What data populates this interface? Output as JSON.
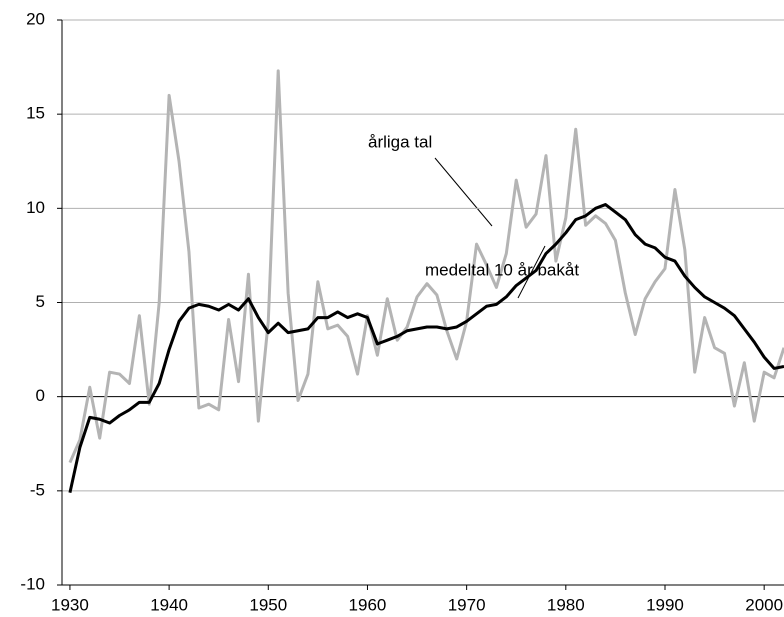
{
  "chart_data": {
    "type": "line",
    "x": [
      1930,
      1931,
      1932,
      1933,
      1934,
      1935,
      1936,
      1937,
      1938,
      1939,
      1940,
      1941,
      1942,
      1943,
      1944,
      1945,
      1946,
      1947,
      1948,
      1949,
      1950,
      1951,
      1952,
      1953,
      1954,
      1955,
      1956,
      1957,
      1958,
      1959,
      1960,
      1961,
      1962,
      1963,
      1964,
      1965,
      1966,
      1967,
      1968,
      1969,
      1970,
      1971,
      1972,
      1973,
      1974,
      1975,
      1976,
      1977,
      1978,
      1979,
      1980,
      1981,
      1982,
      1983,
      1984,
      1985,
      1986,
      1987,
      1988,
      1989,
      1990,
      1991,
      1992,
      1993,
      1994,
      1995,
      1996,
      1997,
      1998,
      1999,
      2000,
      2001,
      2002
    ],
    "series": [
      {
        "name": "årliga tal",
        "color": "#b4b4b4",
        "values": [
          -3.5,
          -2.3,
          0.5,
          -2.2,
          1.3,
          1.2,
          0.7,
          4.3,
          -0.4,
          5.0,
          16.0,
          12.5,
          7.7,
          -0.6,
          -0.4,
          -0.7,
          4.1,
          0.8,
          6.5,
          -1.3,
          4.0,
          17.3,
          5.5,
          -0.2,
          1.2,
          6.1,
          3.6,
          3.8,
          3.2,
          1.2,
          4.3,
          2.2,
          5.2,
          3.0,
          3.7,
          5.3,
          6.0,
          5.4,
          3.5,
          2.0,
          4.0,
          8.1,
          7.0,
          5.8,
          7.6,
          11.5,
          9.0,
          9.7,
          12.8,
          7.2,
          9.5,
          14.2,
          9.1,
          9.6,
          9.2,
          8.3,
          5.5,
          3.3,
          5.2,
          6.1,
          6.8,
          11.0,
          7.8,
          1.3,
          4.2,
          2.6,
          2.3,
          -0.5,
          1.8,
          -1.3,
          1.3,
          1.0,
          2.6
        ]
      },
      {
        "name": "medeltal 10 år bakåt",
        "color": "#000000",
        "values": [
          -5.1,
          -2.7,
          -1.1,
          -1.2,
          -1.4,
          -1.0,
          -0.7,
          -0.3,
          -0.3,
          0.7,
          2.5,
          4.0,
          4.7,
          4.9,
          4.8,
          4.6,
          4.9,
          4.6,
          5.2,
          4.2,
          3.4,
          3.9,
          3.4,
          3.5,
          3.6,
          4.2,
          4.2,
          4.5,
          4.2,
          4.4,
          4.2,
          2.8,
          3.0,
          3.2,
          3.5,
          3.6,
          3.7,
          3.7,
          3.6,
          3.7,
          4.0,
          4.4,
          4.8,
          4.9,
          5.3,
          5.9,
          6.3,
          6.7,
          7.6,
          8.1,
          8.7,
          9.4,
          9.6,
          10.0,
          10.2,
          9.8,
          9.4,
          8.6,
          8.1,
          7.9,
          7.4,
          7.2,
          6.4,
          5.8,
          5.3,
          5.0,
          4.7,
          4.3,
          3.6,
          2.9,
          2.1,
          1.5,
          1.6
        ]
      }
    ],
    "xlim": [
      1929.2,
      2002
    ],
    "xticks": [
      1930,
      1940,
      1950,
      1960,
      1970,
      1980,
      1990,
      2000
    ],
    "ylim": [
      -10,
      20
    ],
    "yticks": [
      -10,
      -5,
      0,
      5,
      10,
      15,
      20
    ],
    "grid": true
  }
}
